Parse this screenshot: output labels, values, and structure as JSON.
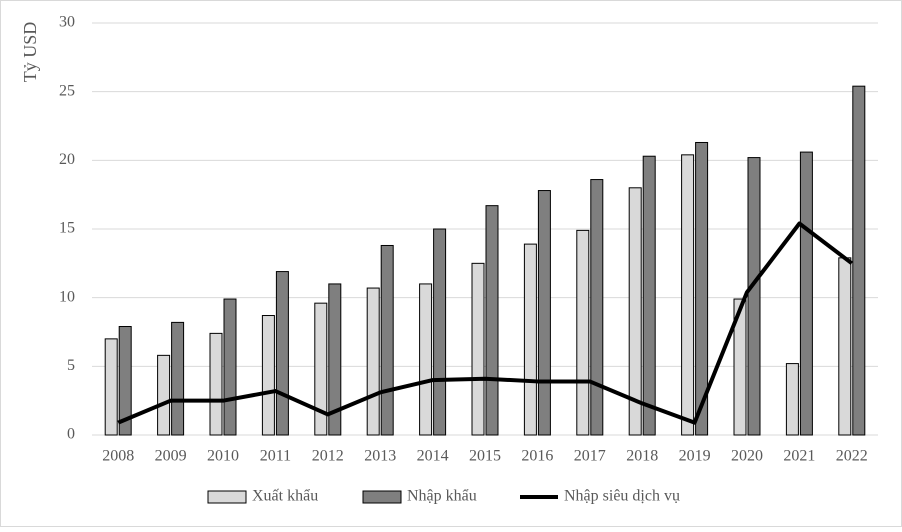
{
  "chart_data": {
    "type": "bar",
    "y_label": "Tỷ USD",
    "categories": [
      "2008",
      "2009",
      "2010",
      "2011",
      "2012",
      "2013",
      "2014",
      "2015",
      "2016",
      "2017",
      "2018",
      "2019",
      "2020",
      "2021",
      "2022"
    ],
    "series": [
      {
        "name": "Xuất khẩu",
        "type": "bar",
        "color": "#d9d9d9",
        "values": [
          7.0,
          5.8,
          7.4,
          8.7,
          9.6,
          10.7,
          11.0,
          12.5,
          13.9,
          14.9,
          18.0,
          20.4,
          9.9,
          5.2,
          12.9
        ]
      },
      {
        "name": "Nhập khẩu",
        "type": "bar",
        "color": "#7f7f7f",
        "values": [
          7.9,
          8.2,
          9.9,
          11.9,
          11.0,
          13.8,
          15.0,
          16.7,
          17.8,
          18.6,
          20.3,
          21.3,
          20.2,
          20.6,
          25.4
        ]
      },
      {
        "name": "Nhập siêu dịch vụ",
        "type": "line",
        "color": "#000000",
        "values": [
          0.9,
          2.5,
          2.5,
          3.2,
          1.5,
          3.1,
          4.0,
          4.1,
          3.9,
          3.9,
          2.3,
          0.9,
          10.4,
          15.4,
          12.5
        ]
      }
    ],
    "ylim": [
      0,
      30
    ],
    "yticks": [
      0,
      5,
      10,
      15,
      20,
      25,
      30
    ],
    "grid": true,
    "legend": "bottom"
  }
}
